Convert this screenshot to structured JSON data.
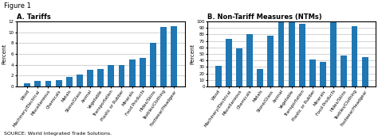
{
  "title": "Figure 1",
  "annotations": [
    "SOURCE: World Integrated Trade Solutions."
  ],
  "chart_data": [
    {
      "type": "bar",
      "title": "A. Tariffs",
      "categories": [
        "Wood",
        "Machinery/Electrical",
        "Miscellaneous",
        "Chemicals",
        "Metals",
        "Stone/Glass",
        "Animal",
        "Vegetable",
        "Transportation",
        "Plastic or Rubber",
        "Minerals",
        "Food Products",
        "Hides/Skins",
        "Textiles/Clothing",
        "Footwear/Headgear"
      ],
      "values": [
        0.5,
        1.0,
        1.0,
        1.2,
        1.7,
        2.2,
        3.0,
        3.2,
        4.0,
        4.0,
        5.0,
        5.3,
        8.0,
        11.0,
        11.2
      ],
      "ylabel": "Percent",
      "ylim": [
        0,
        12
      ],
      "yticks": [
        0,
        2,
        4,
        6,
        8,
        10,
        12
      ],
      "grid": true
    },
    {
      "type": "bar",
      "title": "B. Non-Tariff Measures (NTMs)",
      "categories": [
        "Wood",
        "Machinery/Electrical",
        "Miscellaneous",
        "Chemicals",
        "Metals",
        "Stone/Glass",
        "Animal",
        "Vegetable",
        "Transportation",
        "Plastic or Rubber",
        "Minerals",
        "Food Products",
        "Hides/Skins",
        "Textiles/Clothing",
        "Footwear/Headgear"
      ],
      "values": [
        32,
        73,
        58,
        80,
        27,
        78,
        100,
        100,
        97,
        42,
        38,
        100,
        47,
        93,
        45
      ],
      "ylabel": "Percent",
      "ylim": [
        0,
        100
      ],
      "yticks": [
        0,
        10,
        20,
        30,
        40,
        50,
        60,
        70,
        80,
        90,
        100
      ],
      "grid": true
    }
  ]
}
